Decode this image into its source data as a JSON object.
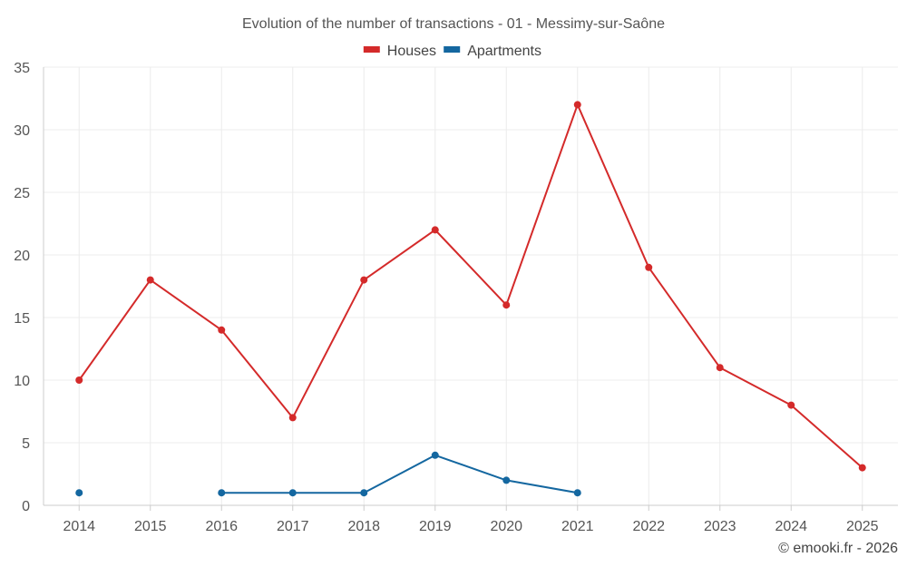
{
  "chart_data": {
    "type": "line",
    "title": "Evolution of the number of transactions - 01 - Messimy-sur-Saône",
    "categories": [
      "2014",
      "2015",
      "2016",
      "2017",
      "2018",
      "2019",
      "2020",
      "2021",
      "2022",
      "2023",
      "2024",
      "2025"
    ],
    "series": [
      {
        "name": "Houses",
        "color": "#d42a2a",
        "values": [
          10,
          18,
          14,
          7,
          18,
          22,
          16,
          32,
          19,
          11,
          8,
          3
        ]
      },
      {
        "name": "Apartments",
        "color": "#1467a0",
        "values": [
          1,
          null,
          1,
          1,
          1,
          4,
          2,
          1,
          null,
          null,
          null,
          null
        ]
      }
    ],
    "ylim": [
      0,
      35
    ],
    "yticks": [
      0,
      5,
      10,
      15,
      20,
      25,
      30,
      35
    ],
    "xlabel": "",
    "ylabel": "",
    "grid": true,
    "legend": "top-center"
  },
  "footer": {
    "credit": "© emooki.fr - 2026"
  }
}
